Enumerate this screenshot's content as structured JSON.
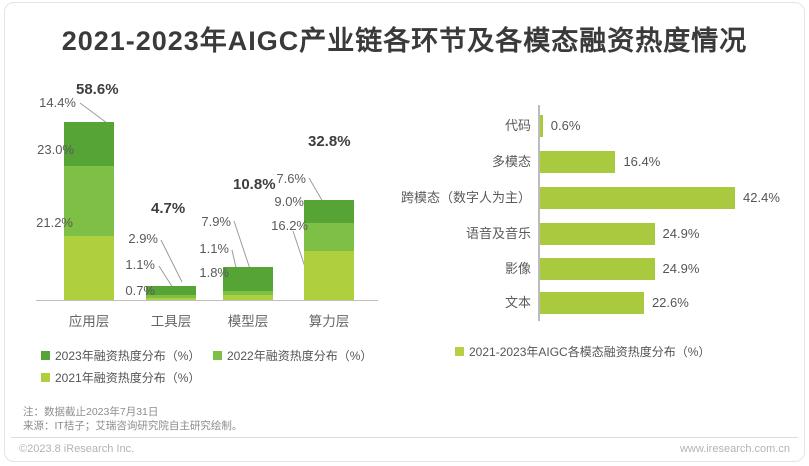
{
  "page": {
    "title": "2021-2023年AIGC产业链各环节及各模态融资热度情况",
    "notes": [
      "注：数据截止2023年7月31日",
      "来源：IT桔子；艾瑞咨询研究院自主研究绘制。"
    ],
    "footer": {
      "left": "©2023.8 iResearch Inc.",
      "right": "www.iresearch.com.cn"
    }
  },
  "colors": {
    "green_2023": "#56a436",
    "green_2022": "#7ebf46",
    "green_2021": "#aed03c",
    "right_bar": "#a9ca3e",
    "right_legend_swatch": "#b6d046",
    "axis": "#bdbdbd"
  },
  "chart_data": [
    {
      "type": "bar",
      "subtype": "stacked-vertical",
      "title": "",
      "categories": [
        "应用层",
        "工具层",
        "模型层",
        "算力层"
      ],
      "series": [
        {
          "name": "2023年融资热度分布（%）",
          "color": "#56a436",
          "values": [
            14.4,
            2.9,
            7.9,
            7.6
          ]
        },
        {
          "name": "2022年融资热度分布（%）",
          "color": "#7ebf46",
          "values": [
            23.0,
            1.1,
            1.1,
            9.0
          ]
        },
        {
          "name": "2021年融资热度分布（%）",
          "color": "#aed03c",
          "values": [
            21.2,
            0.7,
            1.8,
            16.2
          ]
        }
      ],
      "totals": [
        58.6,
        4.7,
        10.8,
        32.8
      ],
      "ylim": [
        0,
        60
      ],
      "grid": false,
      "legend_position": "bottom"
    },
    {
      "type": "bar",
      "subtype": "horizontal",
      "title": "",
      "categories": [
        "代码",
        "多模态",
        "跨模态（数字人为主）",
        "语音及音乐",
        "影像",
        "文本"
      ],
      "values": [
        0.6,
        16.4,
        42.4,
        24.9,
        24.9,
        22.6
      ],
      "legend": "2021-2023年AIGC各模态融资热度分布（%）",
      "color": "#a9ca3e",
      "xlim": [
        0,
        45
      ],
      "grid": false,
      "legend_position": "bottom"
    }
  ]
}
